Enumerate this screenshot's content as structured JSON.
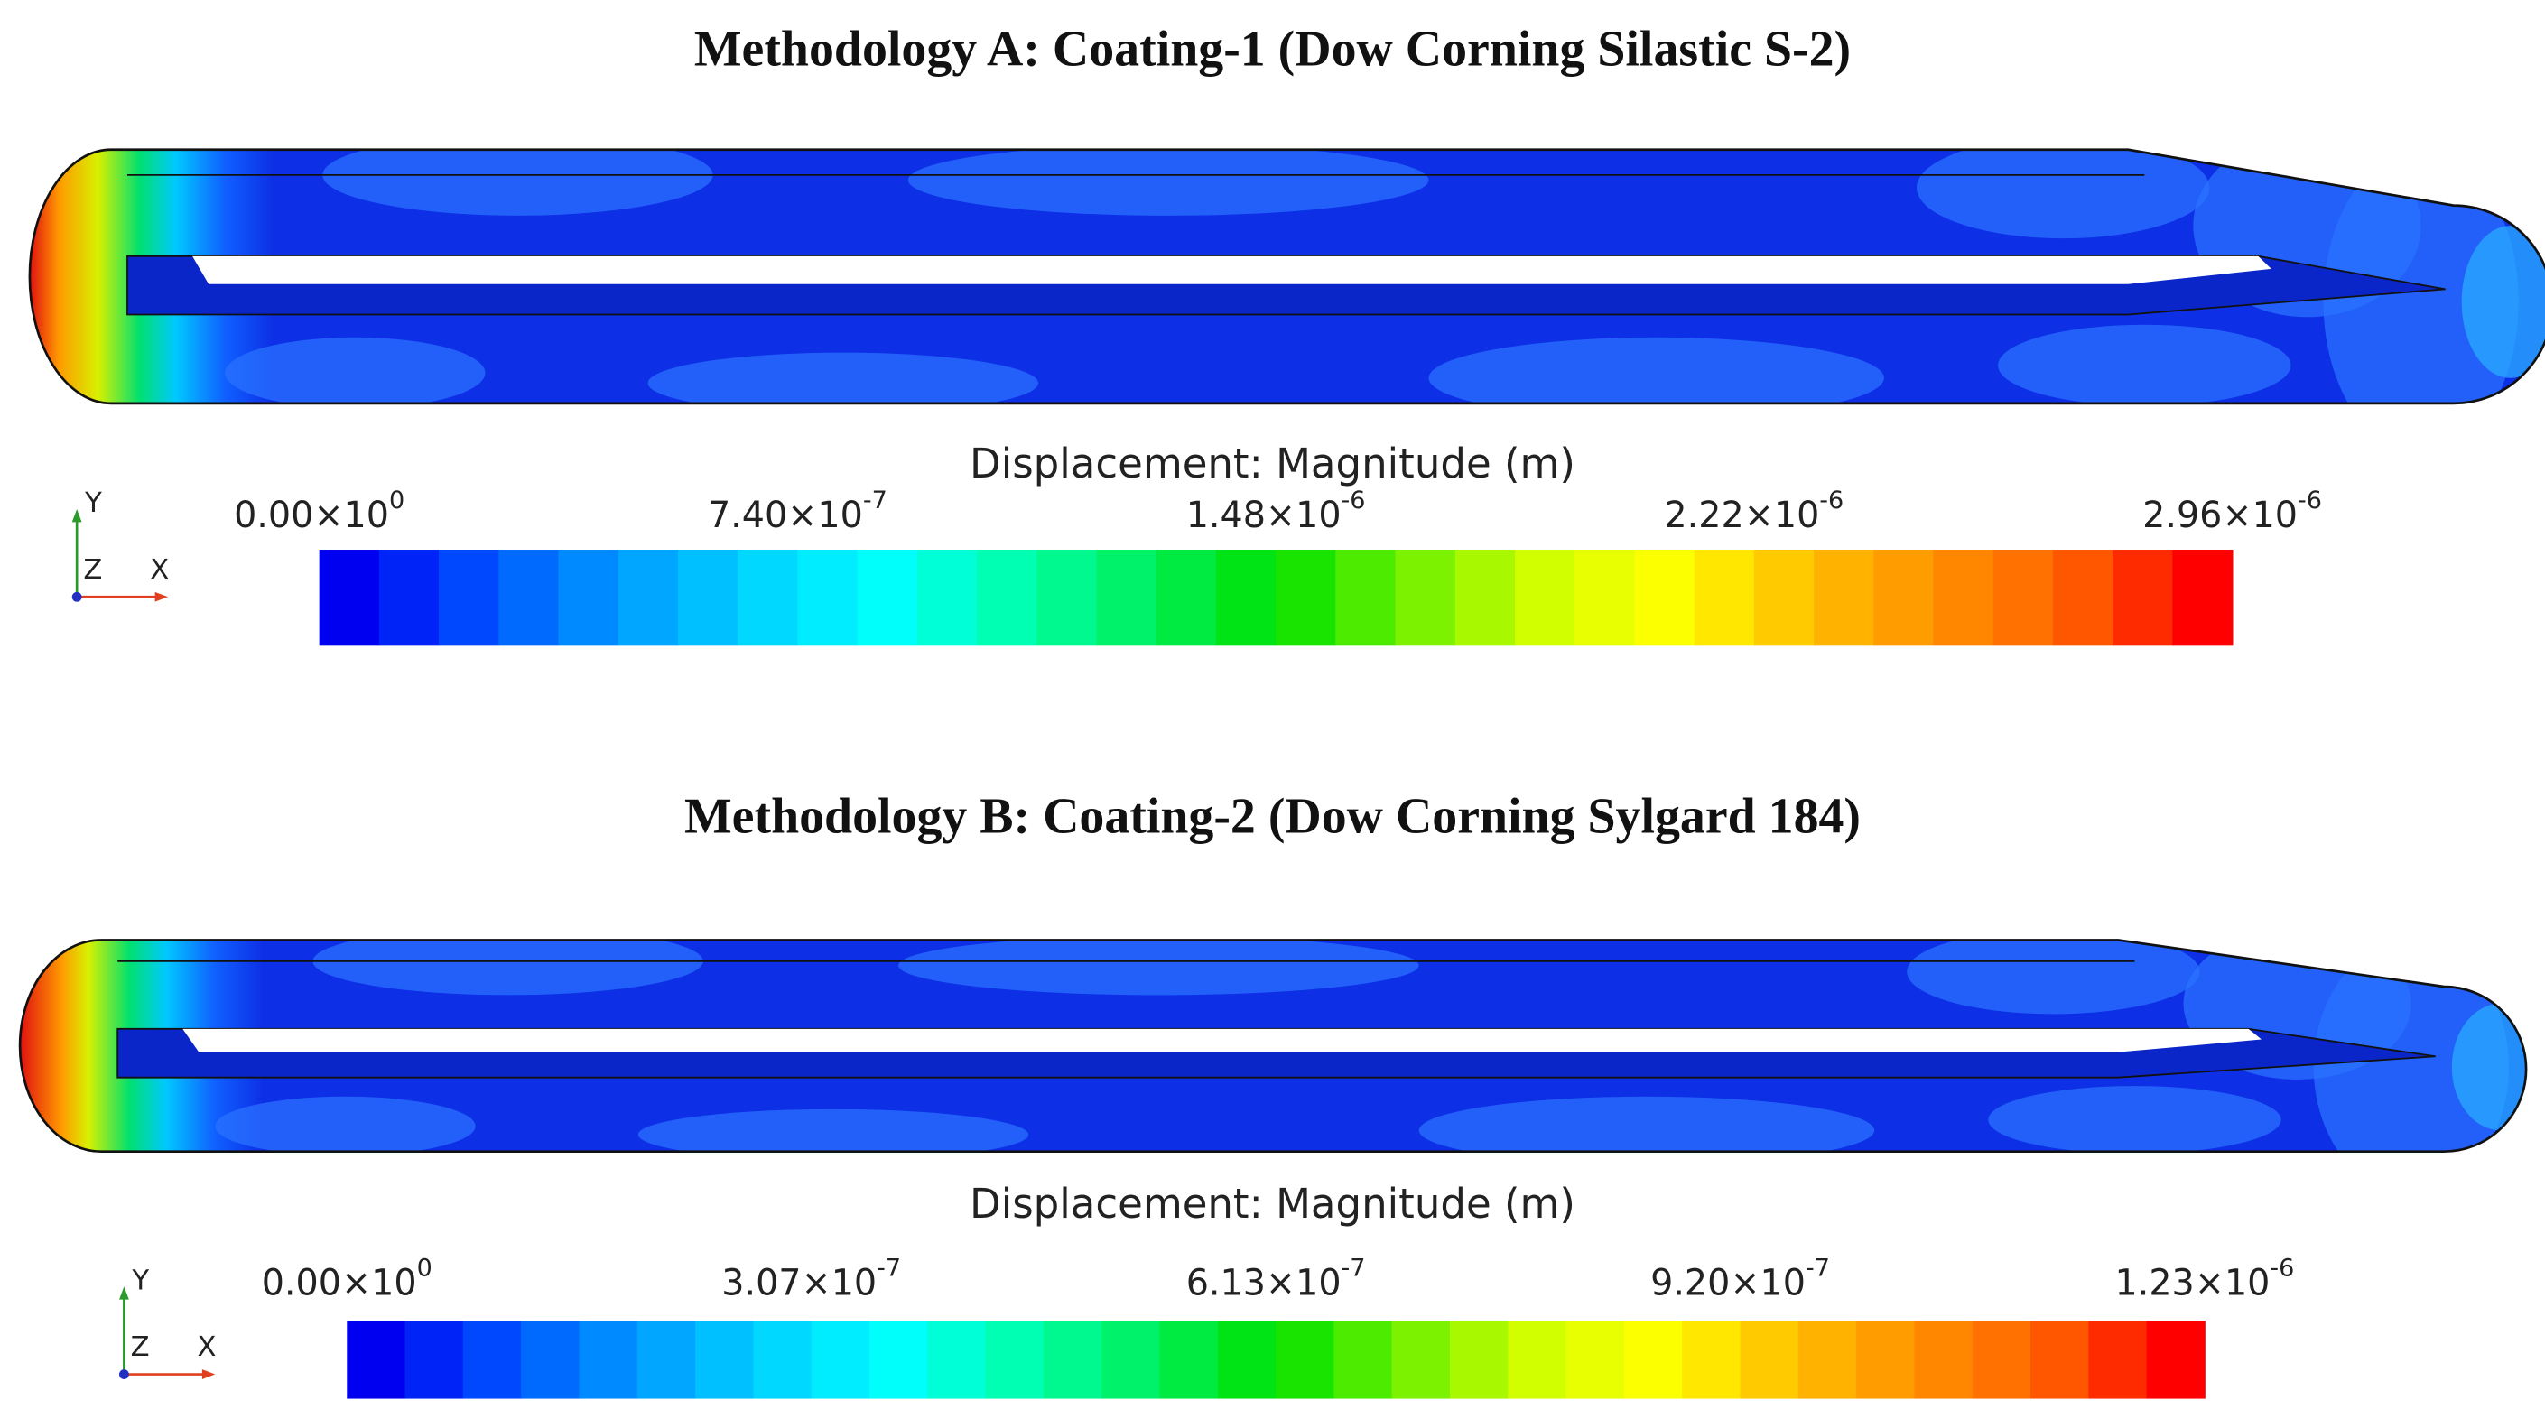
{
  "panels": [
    {
      "title": "Methodology A: Coating-1 (Dow Corning Silastic S-2)",
      "legend_title": "Displacement: Magnitude (m)",
      "ticks": [
        {
          "base": "0.00×10",
          "exponent": "0"
        },
        {
          "base": "7.40×10",
          "exponent": "-7"
        },
        {
          "base": "1.48×10",
          "exponent": "-6"
        },
        {
          "base": "2.22×10",
          "exponent": "-6"
        },
        {
          "base": "2.96×10",
          "exponent": "-6"
        }
      ],
      "axes": {
        "y": "Y",
        "z": "Z",
        "x": "X"
      }
    },
    {
      "title": "Methodology B: Coating-2 (Dow Corning Sylgard 184)",
      "legend_title": "Displacement: Magnitude (m)",
      "ticks": [
        {
          "base": "0.00×10",
          "exponent": "0"
        },
        {
          "base": "3.07×10",
          "exponent": "-7"
        },
        {
          "base": "6.13×10",
          "exponent": "-7"
        },
        {
          "base": "9.20×10",
          "exponent": "-7"
        },
        {
          "base": "1.23×10",
          "exponent": "-6"
        }
      ],
      "axes": {
        "y": "Y",
        "z": "Z",
        "x": "X"
      }
    }
  ]
}
